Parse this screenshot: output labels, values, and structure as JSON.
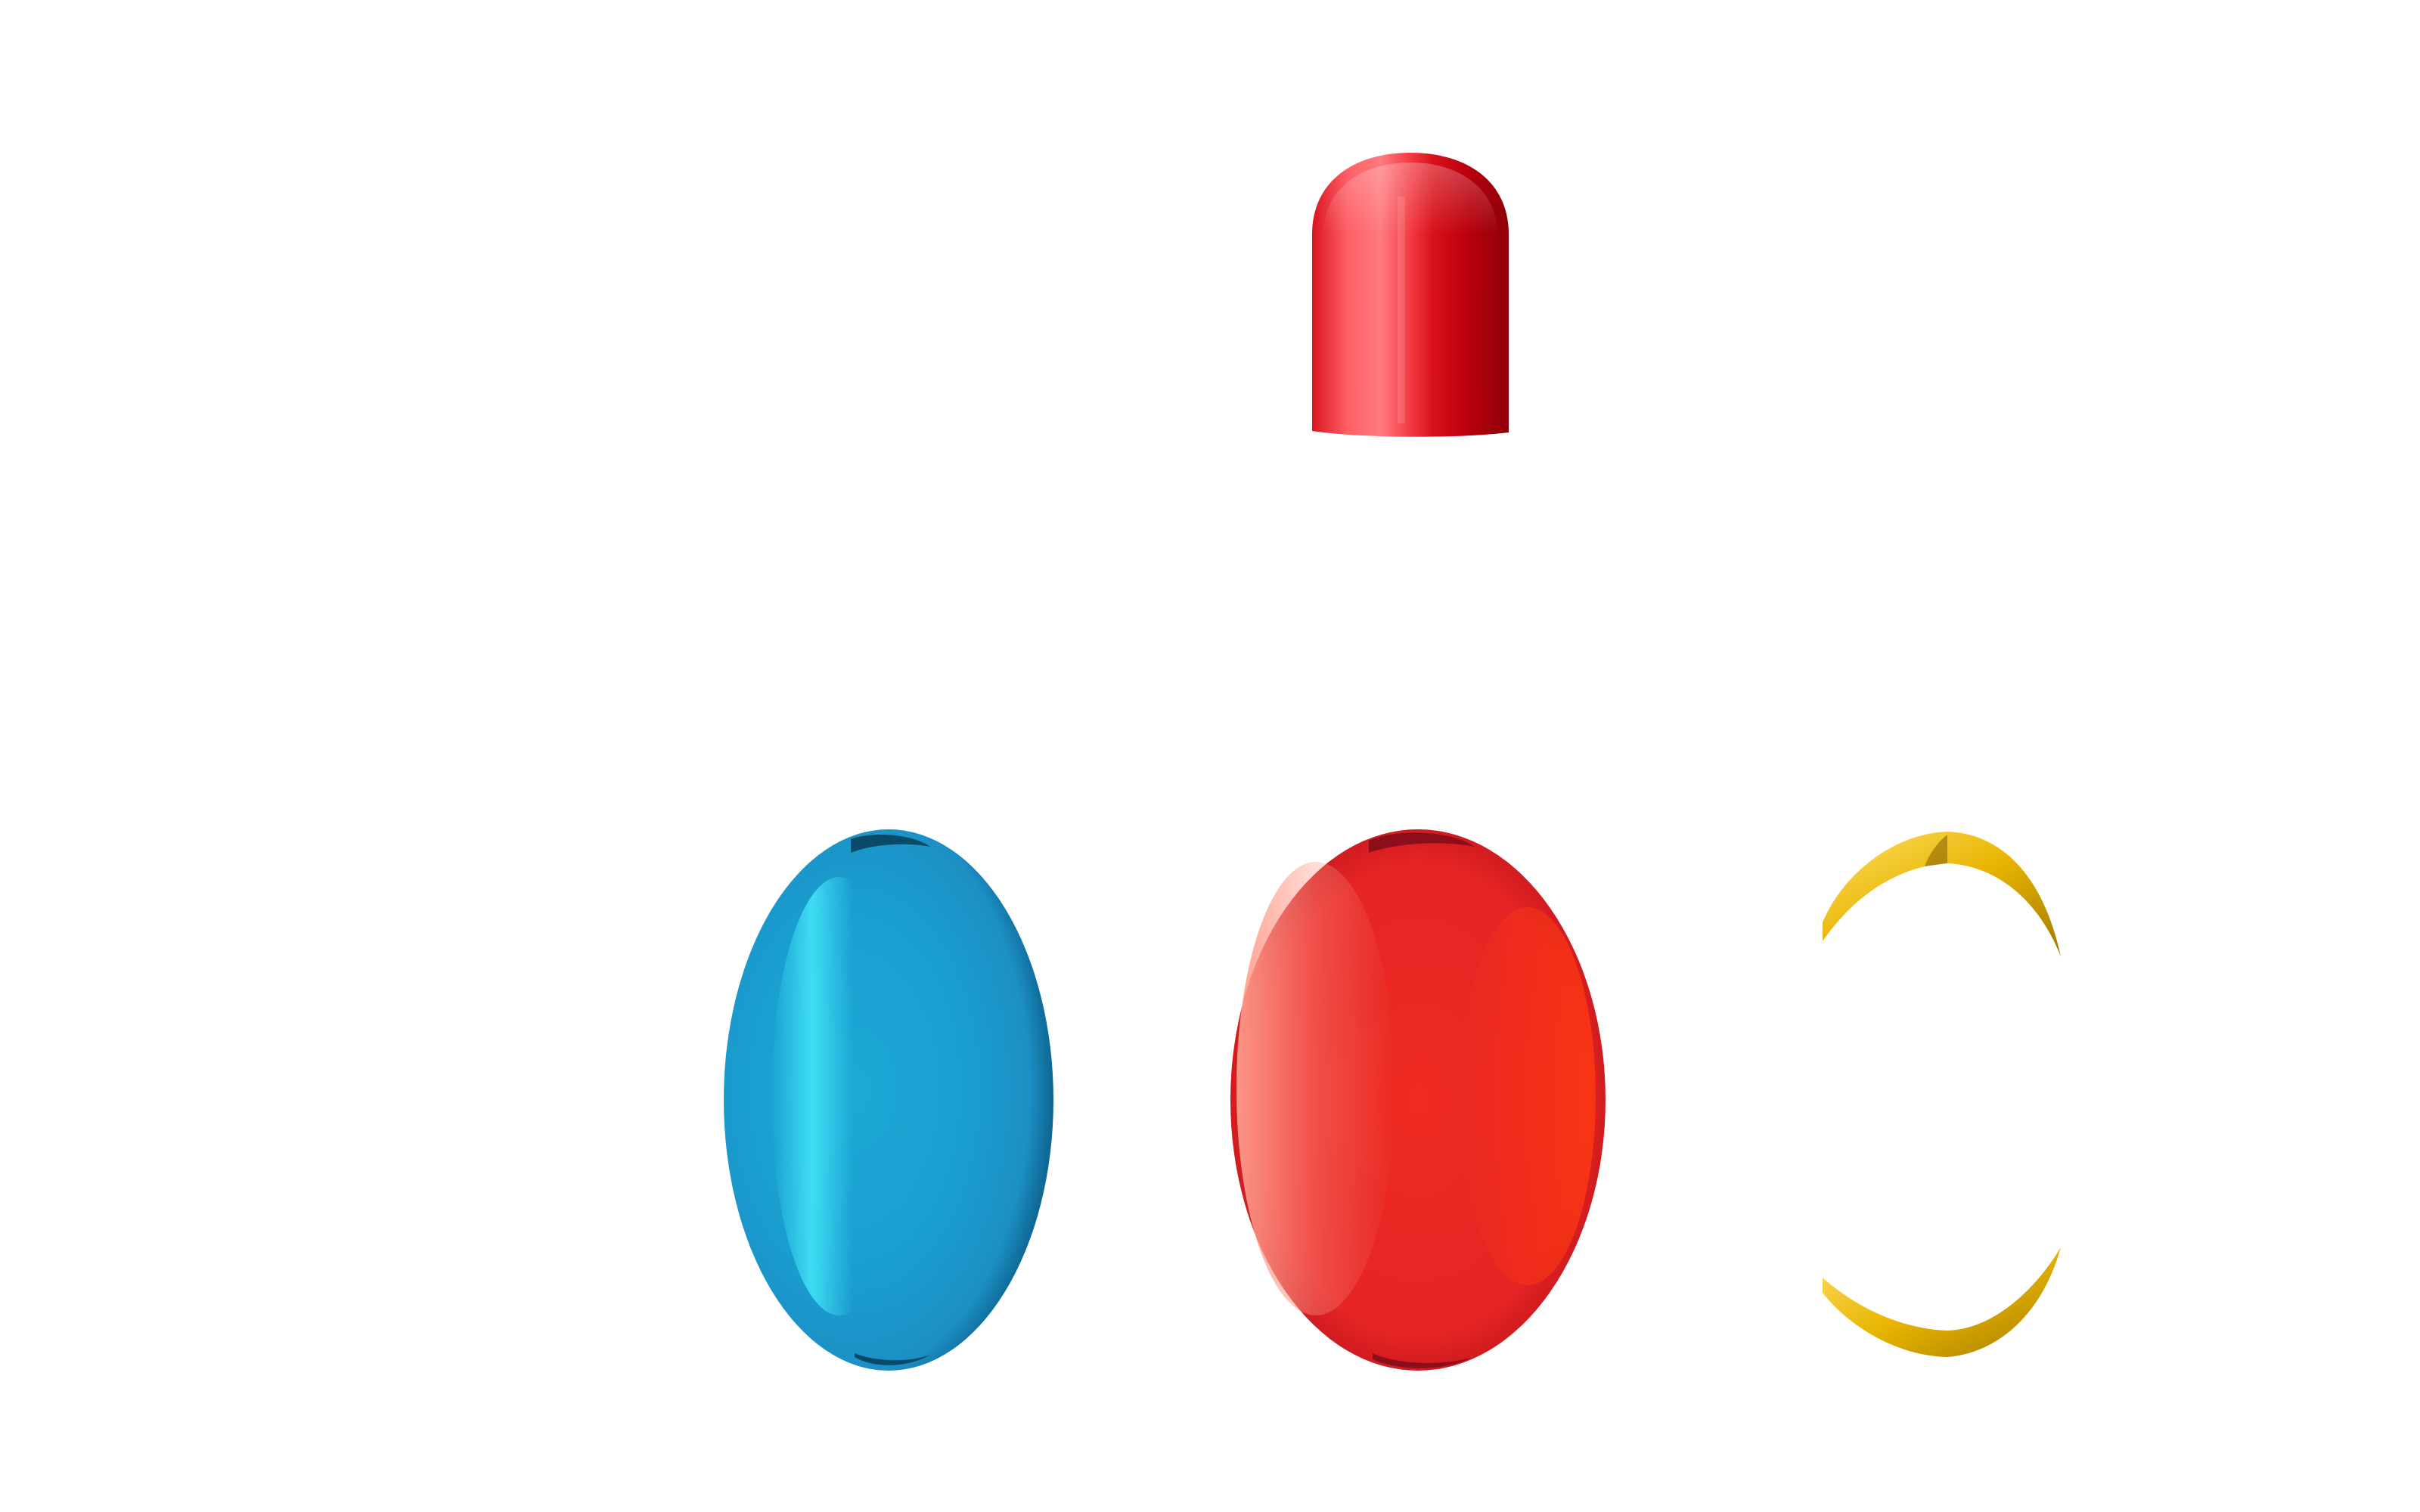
{
  "scene": {
    "background": "#ffffff",
    "objects": [
      {
        "id": "red-capsule-cap",
        "kind": "hard capsule cap",
        "color": "#e01a22",
        "highlight": "#ff7075",
        "shadow": "#a8000a"
      },
      {
        "id": "blue-softgel",
        "kind": "oval softgel",
        "color": "#1aa6d8",
        "highlight": "#3ee3f5",
        "shadow": "#0e6f9a"
      },
      {
        "id": "red-softgel",
        "kind": "oval softgel",
        "color": "#ee2a22",
        "highlight": "#ffa090",
        "shadow": "#b0101a"
      },
      {
        "id": "gold-softgel-fragment",
        "kind": "softgel shell fragment (top and bottom arcs)",
        "color": "#e8b400",
        "highlight": "#ffe066",
        "shadow": "#a27a00"
      }
    ]
  }
}
